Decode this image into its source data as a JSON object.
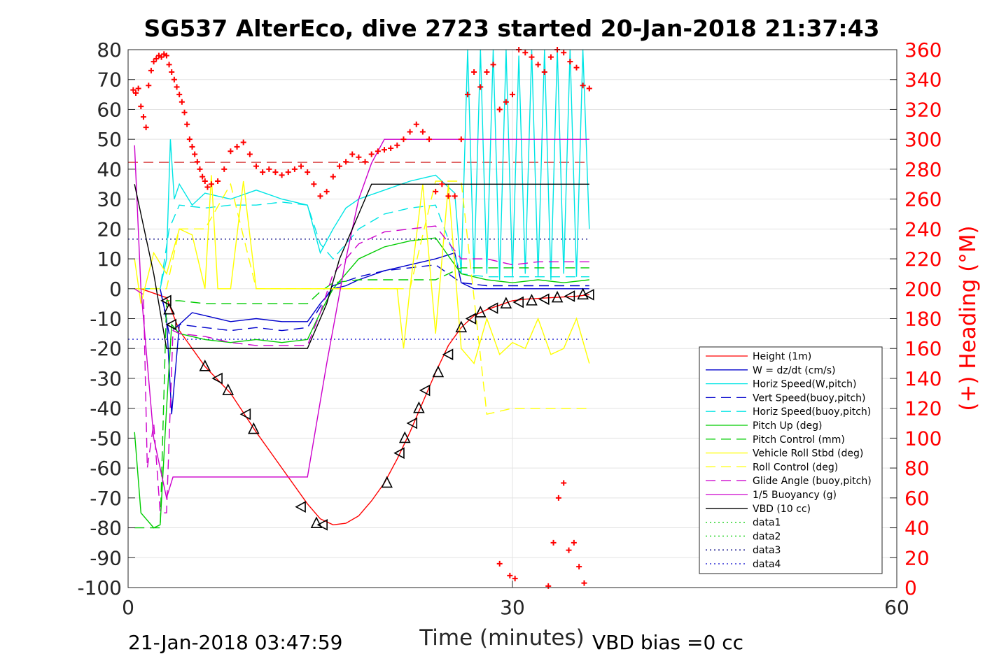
{
  "chart_data": {
    "type": "line",
    "title": "SG537 AlterEco, dive 2723 started 20-Jan-2018 21:37:43",
    "xlabel": "Time (minutes)",
    "ylabel_right": "(+) Heading (°M)",
    "footer_left": "21-Jan-2018 03:47:59",
    "footer_right": "VBD bias =0 cc",
    "xlim": [
      0,
      60
    ],
    "ylim": [
      -100,
      80
    ],
    "ylim_right": [
      0,
      360
    ],
    "x_ticks": [
      "0",
      "30",
      "60"
    ],
    "y_ticks": [
      "80",
      "70",
      "60",
      "50",
      "40",
      "30",
      "20",
      "10",
      "0",
      "-10",
      "-20",
      "-30",
      "-40",
      "-50",
      "-60",
      "-70",
      "-80",
      "-90",
      "-100"
    ],
    "y_ticks_right": [
      "360",
      "340",
      "320",
      "300",
      "280",
      "260",
      "240",
      "220",
      "200",
      "180",
      "160",
      "140",
      "120",
      "100",
      "80",
      "60",
      "40",
      "20",
      "0"
    ],
    "grid": true,
    "legend_position": "lower-right",
    "legend": [
      {
        "name": "Height (1m)",
        "color": "#ff0000",
        "dash": "solid"
      },
      {
        "name": "W = dz/dt (cm/s)",
        "color": "#0000cc",
        "dash": "solid"
      },
      {
        "name": "Horiz Speed(W,pitch)",
        "color": "#00e5e5",
        "dash": "solid"
      },
      {
        "name": "Vert Speed(buoy,pitch)",
        "color": "#0000cc",
        "dash": "dash"
      },
      {
        "name": "Horiz Speed(buoy,pitch)",
        "color": "#00e5e5",
        "dash": "dash"
      },
      {
        "name": "Pitch Up (deg)",
        "color": "#00cc00",
        "dash": "solid"
      },
      {
        "name": "Pitch Control (mm)",
        "color": "#00cc00",
        "dash": "dash"
      },
      {
        "name": "Vehicle Roll Stbd (deg)",
        "color": "#ffff00",
        "dash": "solid"
      },
      {
        "name": "Roll Control (deg)",
        "color": "#ffff00",
        "dash": "dash"
      },
      {
        "name": "Glide Angle (buoy,pitch)",
        "color": "#cc00cc",
        "dash": "dash"
      },
      {
        "name": "1/5 Buoyancy (g)",
        "color": "#cc00cc",
        "dash": "solid"
      },
      {
        "name": "VBD (10 cc)",
        "color": "#000000",
        "dash": "solid"
      },
      {
        "name": "data1",
        "color": "#00cc00",
        "dash": "dot"
      },
      {
        "name": "data2",
        "color": "#00cc00",
        "dash": "dot"
      },
      {
        "name": "data3",
        "color": "#000080",
        "dash": "dot"
      },
      {
        "name": "data4",
        "color": "#0000cc",
        "dash": "dot"
      }
    ],
    "reference_lines": [
      {
        "name": "data3",
        "y": 16.6,
        "color": "#000080"
      },
      {
        "name": "data4",
        "y": -16.9,
        "color": "#0000cc"
      },
      {
        "name": "heading-reference",
        "y": 42.3,
        "color": "#cc0000"
      }
    ],
    "series": [
      {
        "name": "Height (1m)",
        "color": "#ff0000",
        "dash": "solid",
        "x": [
          1.0,
          3.0,
          4.0,
          6.0,
          8.0,
          10.0,
          12.0,
          14.0,
          15.0,
          16.0,
          17.0,
          18.0,
          19.0,
          20.0,
          21.0,
          22.0,
          23.0,
          24.0,
          25.0,
          26.0,
          27.0,
          28.0,
          29.0,
          30.0,
          31.0,
          33.0,
          35.0,
          36.0
        ],
        "y": [
          0,
          -3,
          -14,
          -26,
          -35,
          -48,
          -60,
          -72,
          -77,
          -79,
          -78.5,
          -76,
          -71,
          -65,
          -57,
          -48,
          -38,
          -28,
          -19,
          -13,
          -9,
          -7,
          -5.5,
          -4,
          -3.5,
          -3,
          -2.5,
          -2
        ]
      },
      {
        "name": "W = dz/dt (cm/s)",
        "color": "#0000cc",
        "dash": "solid",
        "x": [
          0.5,
          2.5,
          3.0,
          3.4,
          4.0,
          5.0,
          6.0,
          8.0,
          10.0,
          12.0,
          14.0,
          15.0,
          16.0,
          17.0,
          18.0,
          20.0,
          22.0,
          24.0,
          25.5,
          26.0,
          27.0,
          29.0,
          31.0,
          33.0,
          35.0,
          36.0
        ],
        "y": [
          0,
          0,
          -10,
          -42,
          -12,
          -8,
          -9,
          -11,
          -10,
          -11,
          -11,
          -5,
          0,
          1,
          3,
          6,
          8,
          10,
          12,
          2,
          0,
          0,
          0,
          0,
          0,
          0
        ]
      },
      {
        "name": "Horiz Speed(W,pitch)",
        "color": "#00e5e5",
        "dash": "solid",
        "x": [
          0.5,
          2.5,
          3.0,
          3.3,
          3.6,
          4.0,
          5.0,
          6.0,
          8.0,
          10.0,
          12.0,
          14.0,
          15.0,
          16.0,
          17.0,
          18.0,
          20.0,
          22.0,
          24.0,
          25.5,
          26.0,
          26.5,
          27.0,
          27.5,
          28.0,
          28.5,
          29.0,
          29.5,
          30.0,
          30.5,
          31.0,
          31.5,
          32.0,
          32.5,
          33.0,
          33.5,
          34.0,
          34.5,
          35.0,
          35.5,
          36.0
        ],
        "y": [
          0,
          0,
          10,
          50,
          30,
          35,
          28,
          32,
          30,
          33,
          30,
          28,
          12,
          20,
          27,
          30,
          33,
          36,
          38,
          32,
          5,
          80,
          5,
          80,
          5,
          80,
          3,
          80,
          4,
          78,
          5,
          80,
          4,
          80,
          3,
          80,
          5,
          80,
          4,
          80,
          20
        ]
      },
      {
        "name": "Vert Speed(buoy,pitch)",
        "color": "#0000cc",
        "dash": "dash",
        "x": [
          0.5,
          2.5,
          3.2,
          4.0,
          6.0,
          8.0,
          10.0,
          12.0,
          14.0,
          15.0,
          16.0,
          18.0,
          20.0,
          22.0,
          24.0,
          26.0,
          28.0,
          30.0,
          32.0,
          34.0,
          36.0
        ],
        "y": [
          0,
          0,
          -15,
          -12,
          -13,
          -14,
          -13,
          -14,
          -13,
          -6,
          1,
          4,
          6,
          7,
          8,
          2,
          1,
          1,
          1,
          1,
          1
        ]
      },
      {
        "name": "Horiz Speed(buoy,pitch)",
        "color": "#00e5e5",
        "dash": "dash",
        "x": [
          0.5,
          2.5,
          3.2,
          4.0,
          6.0,
          8.0,
          10.0,
          12.0,
          14.0,
          15.0,
          16.0,
          18.0,
          20.0,
          22.0,
          24.0,
          26.0,
          28.0,
          30.0,
          32.0,
          34.0,
          36.0
        ],
        "y": [
          0,
          0,
          20,
          28,
          27,
          28,
          28,
          29,
          28,
          15,
          10,
          20,
          25,
          27,
          28,
          5,
          4,
          4,
          4,
          4,
          4
        ]
      },
      {
        "name": "Pitch Up (deg)",
        "color": "#00cc00",
        "dash": "solid",
        "x": [
          0.5,
          1.0,
          2.0,
          2.5,
          3.0,
          3.4,
          4.0,
          6.0,
          8.0,
          10.0,
          12.0,
          14.0,
          15.0,
          16.0,
          17.0,
          18.0,
          20.0,
          22.0,
          24.0,
          26.0,
          28.0,
          30.0,
          32.0,
          34.0,
          36.0
        ],
        "y": [
          -48,
          -75,
          -80,
          -79,
          -40,
          -12,
          -15,
          -17,
          -18,
          -17,
          -18,
          -17,
          -8,
          0,
          5,
          10,
          14,
          16,
          17,
          5,
          3,
          2,
          3,
          2,
          3
        ]
      },
      {
        "name": "Pitch Control (mm)",
        "color": "#00cc00",
        "dash": "dash",
        "x": [
          0.5,
          2.5,
          3.0,
          4.0,
          6.0,
          8.0,
          10.0,
          12.0,
          14.0,
          15.0,
          16.0,
          18.0,
          20.0,
          22.0,
          24.0,
          26.0,
          28.0,
          30.0,
          32.0,
          34.0,
          36.0
        ],
        "y": [
          -80,
          -80,
          -4,
          -4,
          -5,
          -5,
          -5,
          -5,
          -5,
          -1,
          2,
          3,
          3,
          3,
          3,
          7,
          7,
          7,
          7,
          7,
          7
        ]
      },
      {
        "name": "Vehicle Roll Stbd (deg)",
        "color": "#ffff00",
        "dash": "solid",
        "x": [
          0.5,
          1.0,
          2.0,
          3.0,
          4.0,
          5.0,
          6.0,
          6.5,
          7.0,
          8.0,
          9.0,
          10.0,
          10.5,
          11.0,
          12.0,
          13.0,
          14.0,
          15.0,
          16.0,
          18.0,
          20.0,
          21.0,
          21.5,
          22.0,
          23.0,
          24.0,
          25.0,
          26.0,
          27.0,
          28.0,
          29.0,
          30.0,
          31.0,
          32.0,
          33.0,
          34.0,
          35.0,
          36.0
        ],
        "y": [
          10,
          -5,
          12,
          5,
          20,
          18,
          0,
          38,
          0,
          0,
          36,
          0,
          0,
          0,
          0,
          0,
          0,
          0,
          0,
          0,
          0,
          0,
          -20,
          0,
          35,
          -15,
          35,
          -20,
          -25,
          -10,
          -22,
          -18,
          -20,
          -10,
          -22,
          -20,
          -10,
          -25
        ]
      },
      {
        "name": "Roll Control (deg)",
        "color": "#ffff00",
        "dash": "dash",
        "x": [
          0.5,
          2.5,
          3.0,
          4.0,
          6.0,
          8.0,
          10.0,
          12.0,
          14.0,
          16.0,
          18.0,
          20.0,
          22.0,
          24.0,
          26.0,
          28.0,
          30.0,
          32.0,
          34.0,
          36.0
        ],
        "y": [
          0,
          0,
          0,
          20,
          20,
          35,
          0,
          0,
          0,
          0,
          0,
          0,
          0,
          36,
          36,
          -42,
          -40,
          -40,
          -40,
          -40
        ]
      },
      {
        "name": "Glide Angle (buoy,pitch)",
        "color": "#cc00cc",
        "dash": "dash",
        "x": [
          0.5,
          1.2,
          1.5,
          2.0,
          2.5,
          3.0,
          3.5,
          4.0,
          6.0,
          8.0,
          10.0,
          12.0,
          14.0,
          15.0,
          16.0,
          18.0,
          20.0,
          22.0,
          24.0,
          26.0,
          28.0,
          30.0,
          32.0,
          34.0,
          36.0
        ],
        "y": [
          0,
          -2,
          -60,
          -45,
          -75,
          -75,
          -14,
          -15,
          -16,
          -18,
          -19,
          -19,
          -19,
          -8,
          5,
          15,
          19,
          20,
          21,
          10,
          10,
          8,
          9,
          9,
          9
        ]
      },
      {
        "name": "1/5 Buoyancy (g)",
        "color": "#cc00cc",
        "dash": "solid",
        "x": [
          0.5,
          1.0,
          2.0,
          3.0,
          3.5,
          4.0,
          6.0,
          10.0,
          14.0,
          15.5,
          17.0,
          18.0,
          19.0,
          20.0,
          22.0,
          26.0,
          30.0,
          36.0
        ],
        "y": [
          48,
          0,
          -50,
          -70,
          -63,
          -63,
          -63,
          -63,
          -63,
          -25,
          10,
          30,
          42,
          50,
          50,
          50,
          50,
          50
        ]
      },
      {
        "name": "VBD (10 cc)",
        "color": "#000000",
        "dash": "solid",
        "x": [
          0.5,
          1.0,
          2.0,
          2.8,
          3.0,
          4.0,
          6.0,
          10.0,
          14.0,
          15.5,
          16.5,
          17.5,
          18.5,
          19.0,
          20.0,
          22.0,
          26.0,
          30.0,
          36.0
        ],
        "y": [
          35,
          25,
          5,
          -15,
          -20,
          -20,
          -20,
          -20,
          -20,
          -5,
          10,
          20,
          30,
          35,
          35,
          35,
          35,
          35,
          35
        ]
      }
    ],
    "markers": {
      "name": "dive markers",
      "x": [
        3.0,
        3.2,
        3.4,
        6.0,
        7.0,
        7.8,
        9.2,
        9.8,
        13.5,
        14.7,
        15.2,
        20.2,
        21.2,
        21.6,
        22.2,
        22.7,
        23.2,
        24.2,
        25.0,
        26.0,
        26.8,
        27.5,
        28.5,
        29.5,
        30.5,
        31.5,
        32.5,
        33.5,
        34.5,
        35.5,
        36.0
      ],
      "y": [
        -4,
        -7,
        -12,
        -26,
        -30,
        -34,
        -42,
        -47,
        -73,
        -78.5,
        -79,
        -65,
        -55,
        -50,
        -45,
        -40,
        -34,
        -28,
        -22,
        -13,
        -10,
        -8,
        -6.5,
        -5,
        -4.5,
        -4,
        -3.5,
        -3,
        -2.5,
        -2,
        -2
      ]
    },
    "heading": {
      "name": "(+) Heading (°M)",
      "color": "#ff0000",
      "x": [
        0.4,
        0.6,
        0.8,
        1.0,
        1.2,
        1.4,
        1.6,
        1.8,
        2.0,
        2.2,
        2.4,
        2.6,
        2.8,
        3.0,
        3.2,
        3.4,
        3.6,
        3.8,
        4.0,
        4.2,
        4.4,
        4.6,
        4.8,
        5.0,
        5.2,
        5.4,
        5.6,
        5.8,
        6.0,
        6.2,
        6.5,
        7.0,
        7.5,
        8.0,
        8.5,
        9.0,
        9.5,
        10.0,
        10.5,
        11.0,
        11.5,
        12.0,
        12.5,
        13.0,
        13.5,
        14.0,
        14.5,
        15.0,
        15.5,
        16.0,
        16.5,
        17.0,
        17.5,
        18.0,
        18.5,
        19.0,
        19.5,
        20.0,
        20.5,
        21.0,
        21.5,
        22.0,
        22.5,
        23.0,
        23.5,
        24.0,
        24.5,
        25.0,
        25.5,
        26.0,
        26.5,
        27.0,
        27.5,
        28.0,
        28.5,
        29.0,
        29.5,
        30.0,
        30.5,
        31.0,
        31.5,
        32.0,
        32.5,
        33.0,
        33.5,
        34.0,
        34.5,
        35.0,
        35.5,
        36.0,
        29.0,
        29.8,
        30.2,
        32.8,
        33.2,
        33.6,
        34.0,
        34.4,
        34.8,
        35.2,
        35.6
      ],
      "y": [
        333,
        331,
        334,
        322,
        315,
        308,
        336,
        346,
        352,
        354,
        356,
        355,
        357,
        356,
        350,
        345,
        340,
        335,
        330,
        325,
        318,
        310,
        300,
        295,
        290,
        285,
        280,
        275,
        272,
        268,
        270,
        272,
        280,
        292,
        295,
        298,
        290,
        282,
        278,
        280,
        278,
        276,
        278,
        280,
        282,
        278,
        270,
        262,
        265,
        275,
        282,
        285,
        290,
        288,
        285,
        290,
        292,
        293,
        294,
        296,
        300,
        305,
        310,
        305,
        300,
        265,
        270,
        262,
        262,
        300,
        330,
        345,
        335,
        345,
        350,
        320,
        325,
        330,
        360,
        358,
        355,
        350,
        345,
        355,
        360,
        358,
        352,
        348,
        336,
        334,
        16,
        8,
        6,
        1,
        30,
        60,
        70,
        25,
        30,
        14,
        3
      ]
    }
  }
}
